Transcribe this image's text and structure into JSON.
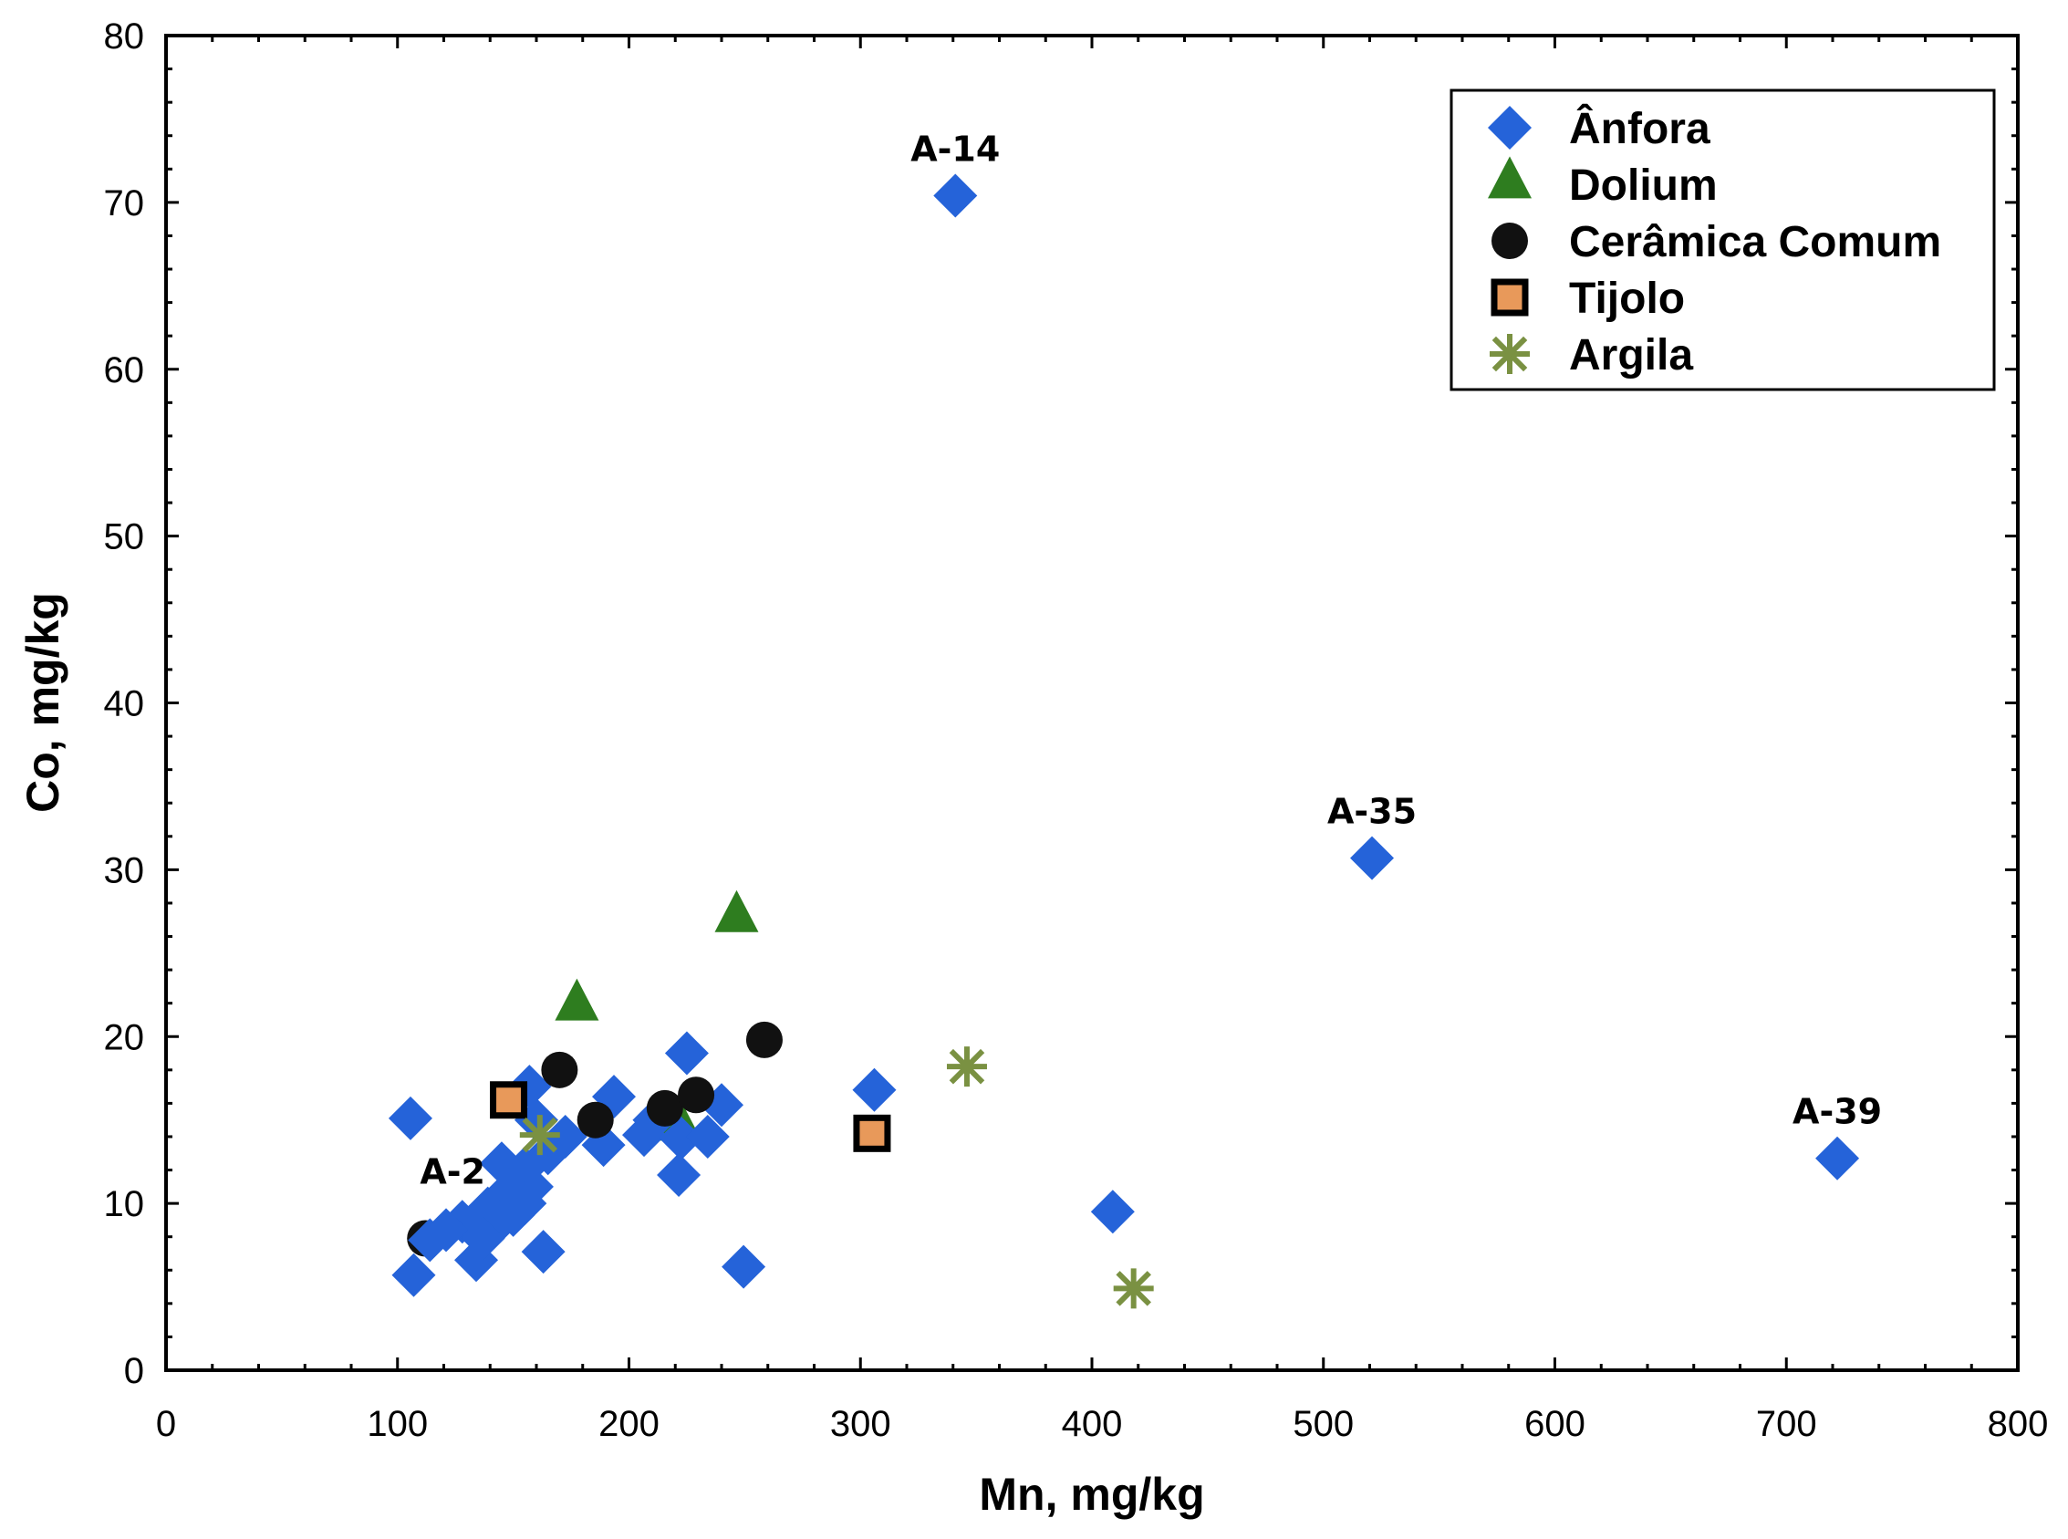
{
  "chart_data": {
    "type": "scatter",
    "title": "",
    "xlabel": "Mn, mg/kg",
    "ylabel": "Co, mg/kg",
    "xlim": [
      0,
      800
    ],
    "ylim": [
      0,
      80
    ],
    "xticks": [
      "0",
      "100",
      "200",
      "300",
      "400",
      "500",
      "600",
      "700",
      "800"
    ],
    "yticks": [
      "0",
      "10",
      "20",
      "30",
      "40",
      "50",
      "60",
      "70",
      "80"
    ],
    "grid": false,
    "legend_position": "top-right",
    "series": [
      {
        "name": "Ânfora",
        "marker": "diamond",
        "color": "#2563d9",
        "points": [
          [
            341,
            70.4
          ],
          [
            521,
            30.7
          ],
          [
            722,
            12.7
          ],
          [
            409,
            9.5
          ],
          [
            306,
            16.8
          ],
          [
            105.6,
            15.1
          ],
          [
            157,
            17.0
          ],
          [
            193.5,
            16.4
          ],
          [
            189,
            13.5
          ],
          [
            172.5,
            14.0
          ],
          [
            225,
            19.0
          ],
          [
            240,
            15.9
          ],
          [
            206.5,
            14.1
          ],
          [
            222.5,
            13.9
          ],
          [
            234,
            14.0
          ],
          [
            221.5,
            11.7
          ],
          [
            249.5,
            6.2
          ],
          [
            211,
            15.0
          ],
          [
            165,
            13.0
          ],
          [
            155,
            12.1
          ],
          [
            145,
            12.4
          ],
          [
            158,
            11.0
          ],
          [
            148,
            10.8
          ],
          [
            155,
            10.0
          ],
          [
            139,
            9.7
          ],
          [
            144,
            8.9
          ],
          [
            128,
            8.9
          ],
          [
            121,
            8.4
          ],
          [
            114,
            7.8
          ],
          [
            107,
            5.7
          ],
          [
            134,
            6.6
          ],
          [
            163,
            7.1
          ],
          [
            150,
            9.3
          ],
          [
            137,
            7.9
          ],
          [
            160,
            15.0
          ]
        ]
      },
      {
        "name": "Dolium",
        "marker": "triangle",
        "color": "#2e7d1f",
        "points": [
          [
            246.5,
            27.1
          ],
          [
            177.5,
            21.8
          ],
          [
            222,
            14.6
          ]
        ]
      },
      {
        "name": "Cerâmica Comum",
        "marker": "circle",
        "color": "#111111",
        "points": [
          [
            258.5,
            19.8
          ],
          [
            170,
            18.0
          ],
          [
            215.5,
            15.7
          ],
          [
            229,
            16.5
          ],
          [
            185.5,
            15.0
          ],
          [
            112,
            7.9
          ]
        ]
      },
      {
        "name": "Tijolo",
        "marker": "square",
        "color": "#e8995a",
        "points": [
          [
            148,
            16.2
          ],
          [
            305,
            14.2
          ]
        ]
      },
      {
        "name": "Argila",
        "marker": "asterisk",
        "color": "#7a9142",
        "points": [
          [
            161.5,
            14.1
          ],
          [
            346,
            18.2
          ],
          [
            418,
            4.9
          ]
        ]
      }
    ],
    "annotations": [
      {
        "text": "A-14",
        "x": 341,
        "y": 70.4
      },
      {
        "text": "A-35",
        "x": 521,
        "y": 30.7
      },
      {
        "text": "A-39",
        "x": 722,
        "y": 12.7
      },
      {
        "text": "A-2",
        "x": 112,
        "y": 7.9
      }
    ]
  }
}
